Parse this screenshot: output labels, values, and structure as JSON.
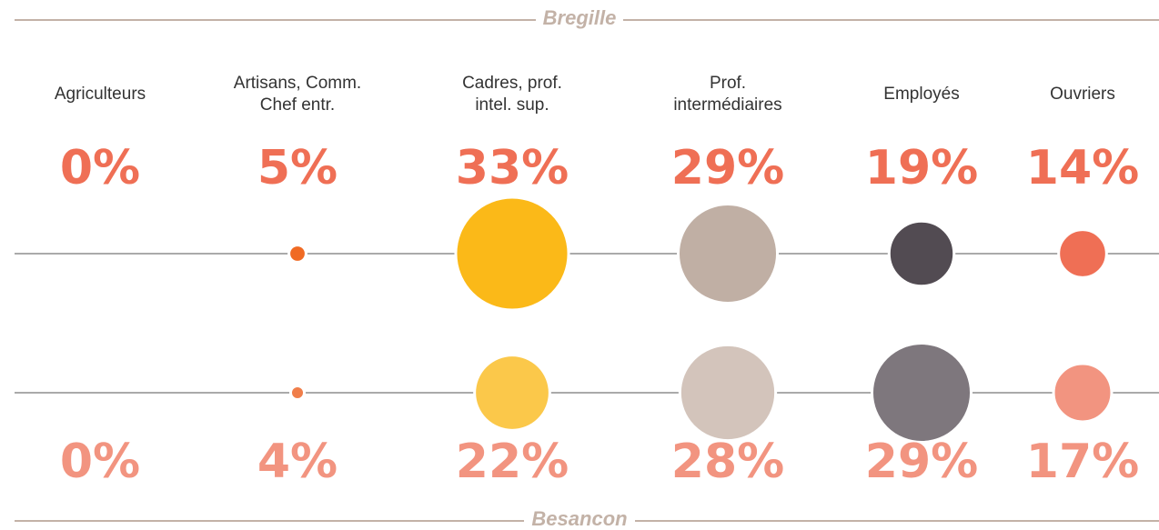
{
  "chart_data": {
    "type": "bubble",
    "categories": [
      "Agriculteurs",
      "Artisans, Comm.\nChef entr.",
      "Cadres, prof.\nintel. sup.",
      "Prof.\nintermédiaires",
      "Employés",
      "Ouvriers"
    ],
    "series": [
      {
        "name": "Bregille",
        "values": [
          0,
          5,
          33,
          29,
          19,
          14
        ],
        "value_labels": [
          "0%",
          "5%",
          "33%",
          "29%",
          "19%",
          "14%"
        ],
        "colors": [
          "#c4ccd2",
          "#f06a23",
          "#fbb918",
          "#c0afa4",
          "#524b52",
          "#ef6f55"
        ],
        "label_color": "#ef6f55"
      },
      {
        "name": "Besancon",
        "values": [
          0,
          4,
          22,
          28,
          29,
          17
        ],
        "value_labels": [
          "0%",
          "4%",
          "22%",
          "28%",
          "29%",
          "17%"
        ],
        "colors": [
          "#c4ccd2",
          "#f07e4a",
          "#fbc84a",
          "#d3c4bb",
          "#7e777d",
          "#f29480"
        ],
        "label_color": "#f29480"
      }
    ]
  }
}
